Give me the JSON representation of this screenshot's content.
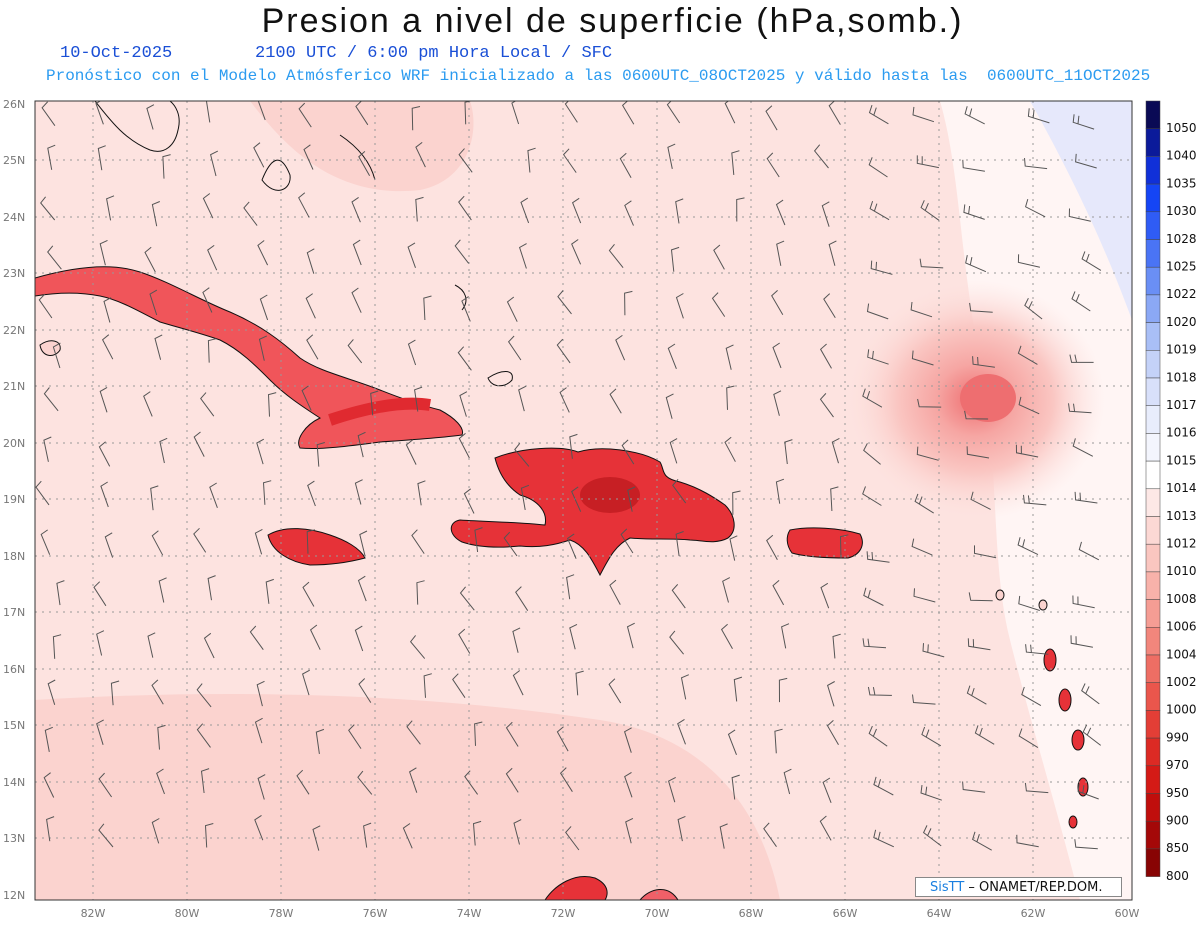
{
  "header": {
    "title": "Presion a nivel de superficie (hPa,somb.)",
    "date": "10-Oct-2025",
    "time_info": "2100 UTC / 6:00 pm Hora Local / SFC",
    "model_info": "Pronóstico con el Modelo Atmósferico WRF inicializado a las 0600UTC_08OCT2025 y válido hasta las  0600UTC_11OCT2025"
  },
  "map": {
    "lat_labels": [
      "26N",
      "25N",
      "24N",
      "23N",
      "22N",
      "21N",
      "20N",
      "19N",
      "18N",
      "17N",
      "16N",
      "15N",
      "14N",
      "13N",
      "12N"
    ],
    "lon_labels": [
      "82W",
      "80W",
      "78W",
      "76W",
      "74W",
      "72W",
      "70W",
      "68W",
      "66W",
      "64W",
      "62W",
      "60W"
    ],
    "background_color": "#fde3e0",
    "land_color": "#e8303a",
    "high_pressure_color": "#e6e8fb"
  },
  "colorbar": {
    "labels": [
      "1050",
      "1040",
      "1035",
      "1030",
      "1028",
      "1025",
      "1022",
      "1020",
      "1019",
      "1018",
      "1017",
      "1016",
      "1015",
      "1014",
      "1013",
      "1012",
      "1010",
      "1008",
      "1006",
      "1004",
      "1002",
      "1000",
      "990",
      "970",
      "950",
      "900",
      "850",
      "800"
    ],
    "colors": [
      "#0a0a55",
      "#0b1a9a",
      "#1030d8",
      "#1545f5",
      "#2f5cf5",
      "#4a74f5",
      "#6a8ff5",
      "#8ba8f5",
      "#a9bff6",
      "#c4d2f8",
      "#d8e0fa",
      "#e8edfc",
      "#f3f5fd",
      "#ffffff",
      "#fde8e6",
      "#fcd8d4",
      "#fac6c0",
      "#f8b2aa",
      "#f59d94",
      "#f2867c",
      "#ee6e64",
      "#ea564c",
      "#e33e36",
      "#dc2a24",
      "#d41a16",
      "#c00e0c",
      "#a40808",
      "#880404"
    ]
  },
  "credit": {
    "brand": "SisTT",
    "text": " – ONAMET/REP.DOM."
  }
}
